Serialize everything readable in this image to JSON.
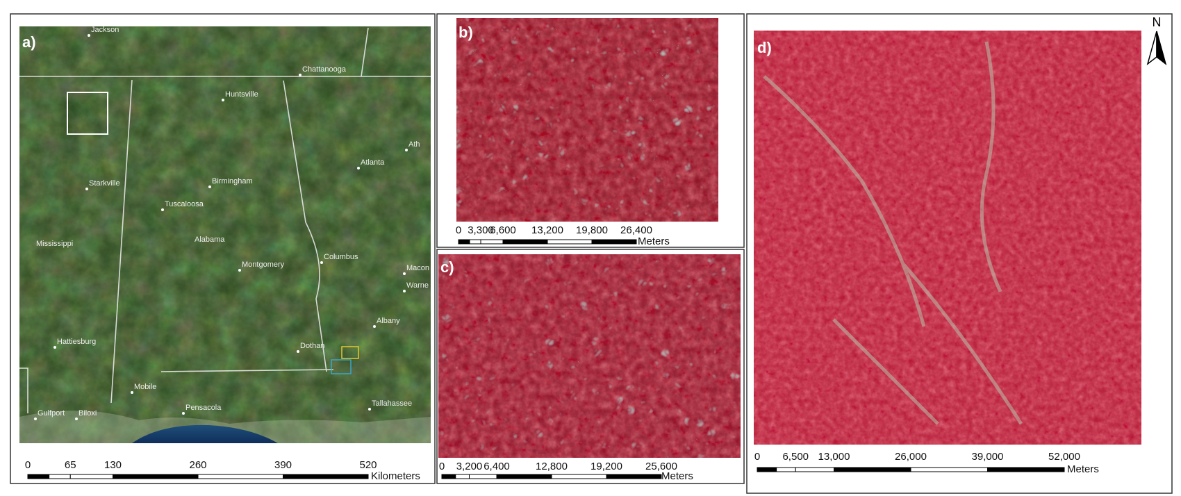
{
  "panels": [
    {
      "label": "a)",
      "places": [
        "Jackson",
        "Chattanooga",
        "Huntsville",
        "Ath",
        "Atlanta",
        "Starkville",
        "Birmingham",
        "Tuscaloosa",
        "Mississippi",
        "Alabama",
        "Montgomery",
        "Columbus",
        "Macon",
        "Warne",
        "Albany",
        "Hattiesburg",
        "Dothan",
        "Mobile",
        "Gulfport",
        "Biloxi",
        "Pensacola",
        "Tallahassee"
      ],
      "scale": {
        "ticks": [
          "0",
          "65",
          "130",
          "260",
          "390",
          "520"
        ],
        "unit": "Kilometers"
      }
    },
    {
      "label": "b)",
      "scale": {
        "ticks": [
          "0",
          "3,300",
          "6,600",
          "13,200",
          "19,800",
          "26,400"
        ],
        "unit": "Meters"
      }
    },
    {
      "label": "c)",
      "scale": {
        "ticks": [
          "0",
          "3,200",
          "6,400",
          "12,800",
          "19,200",
          "25,600"
        ],
        "unit": "Meters"
      }
    },
    {
      "label": "d)",
      "scale": {
        "ticks": [
          "0",
          "6,500",
          "13,000",
          "26,000",
          "39,000",
          "52,000"
        ],
        "unit": "Meters"
      }
    }
  ],
  "north_arrow": "N"
}
